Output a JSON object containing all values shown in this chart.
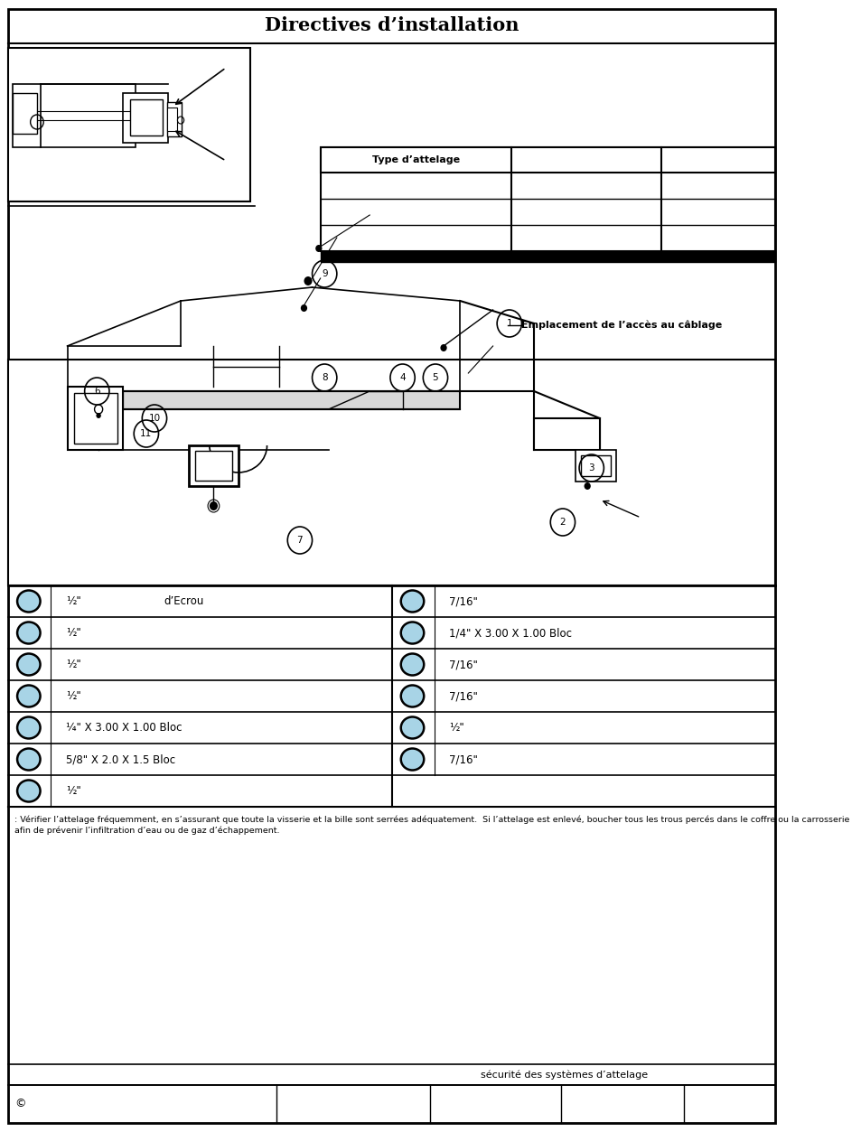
{
  "title": "Directives d’installation",
  "title_fontsize": 15,
  "background_color": "#ffffff",
  "table_header": "Type d’attelage",
  "parts_table": {
    "left_rows": [
      [
        "½\"",
        "d’Ecrou"
      ],
      [
        "½\"",
        ""
      ],
      [
        "½\"",
        ""
      ],
      [
        "½\"",
        ""
      ],
      [
        "¼\" X 3.00 X 1.00 Bloc",
        ""
      ],
      [
        "5/8\" X 2.0 X 1.5 Bloc",
        ""
      ],
      [
        "½\"",
        ""
      ]
    ],
    "right_rows": [
      [
        "7/16\"",
        ""
      ],
      [
        "1/4\" X 3.00 X 1.00 Bloc",
        ""
      ],
      [
        "7/16\"",
        ""
      ],
      [
        "7/16\"",
        ""
      ],
      [
        "½\"",
        ""
      ],
      [
        "7/16\"",
        ""
      ],
      [
        "",
        ""
      ]
    ]
  },
  "cable_label": "Emplacement de l’accès au câblage",
  "footer_text": ": Vérifier l’attelage fréquemment, en s’assurant que toute la visserie et la bille sont serrées adéquatement.  Si l’attelage est enlevé, boucher tous les trous percés dans le coffre ou la carrosserie afin de prévenir l’infiltration d’eau ou de gaz d’échappement.",
  "safety_text": "sécurité des systèmes d’attelage",
  "page_sym": "©",
  "circle_color": "#a8d4e6",
  "circle_edge": "#000000",
  "lw_outer": 1.5,
  "lw_inner": 1.0
}
